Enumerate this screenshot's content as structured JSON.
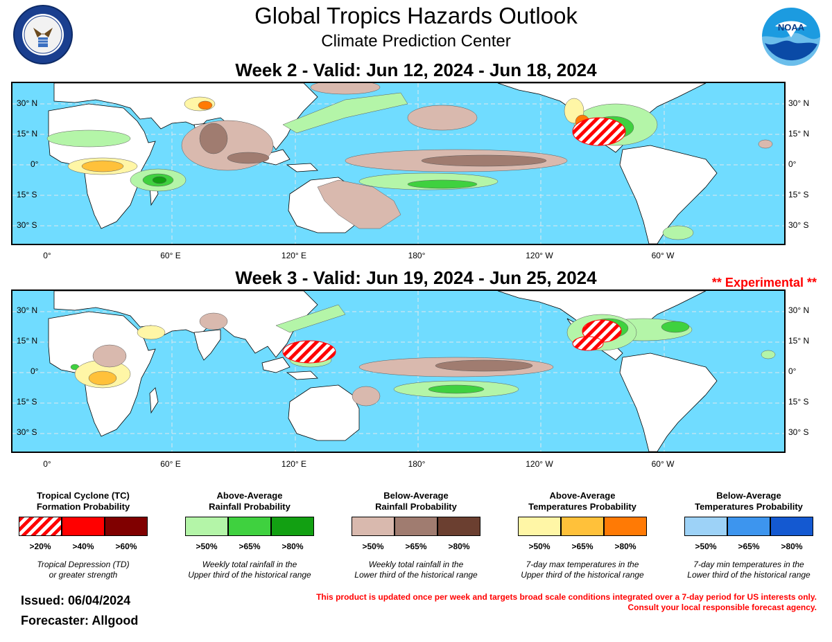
{
  "header": {
    "title": "Global Tropics Hazards Outlook",
    "subtitle": "Climate Prediction Center"
  },
  "week2": {
    "title": "Week 2 - Valid: Jun 12, 2024 - Jun 18, 2024"
  },
  "week3": {
    "title": "Week 3 - Valid: Jun 19, 2024 - Jun 25, 2024",
    "tag": "** Experimental **"
  },
  "axes": {
    "lat_labels": [
      "30° N",
      "15° N",
      "0°",
      "15° S",
      "30° S"
    ],
    "lon_labels": [
      "0°",
      "60° E",
      "120° E",
      "180°",
      "120° W",
      "60° W"
    ]
  },
  "legend": {
    "tc": {
      "title_line1": "Tropical Cyclone (TC)",
      "title_line2": "Formation Probability",
      "labels": [
        ">20%",
        ">40%",
        ">60%"
      ],
      "colors": [
        "#ff0000",
        "#ff0000",
        "#800000"
      ],
      "note_line1": "Tropical Depression (TD)",
      "note_line2": "or greater strength"
    },
    "rain_above": {
      "title_line1": "Above-Average",
      "title_line2": "Rainfall Probability",
      "labels": [
        ">50%",
        ">65%",
        ">80%"
      ],
      "colors": [
        "#b4f5a8",
        "#3fd13f",
        "#12a012"
      ],
      "note_line1": "Weekly total rainfall in the",
      "note_line2": "Upper third of the historical range"
    },
    "rain_below": {
      "title_line1": "Below-Average",
      "title_line2": "Rainfall Probability",
      "labels": [
        ">50%",
        ">65%",
        ">80%"
      ],
      "colors": [
        "#d9b9ae",
        "#a07c70",
        "#6b3f30"
      ],
      "note_line1": "Weekly total rainfall in the",
      "note_line2": "Lower third of the historical range"
    },
    "temp_above": {
      "title_line1": "Above-Average",
      "title_line2": "Temperatures Probability",
      "labels": [
        ">50%",
        ">65%",
        ">80%"
      ],
      "colors": [
        "#fff6a6",
        "#ffc13a",
        "#ff7a05"
      ],
      "note_line1": "7-day max temperatures in the",
      "note_line2": "Upper third of the historical range"
    },
    "temp_below": {
      "title_line1": "Below-Average",
      "title_line2": "Temperatures Probability",
      "labels": [
        ">50%",
        ">65%",
        ">80%"
      ],
      "colors": [
        "#9dd2f7",
        "#3d95ee",
        "#1459d1"
      ],
      "note_line1": "7-day min temperatures in the",
      "note_line2": "Lower third of the historical range"
    }
  },
  "footer": {
    "issued": "Issued: 06/04/2024",
    "forecaster": "Forecaster: Allgood",
    "disclaimer_line1": "This product is updated once per week and targets broad scale conditions integrated over a 7-day period for US interests only.",
    "disclaimer_line2": "Consult your local responsible forecast agency."
  },
  "logos": {
    "noaa_text": "NOAA"
  },
  "colors": {
    "ocean": "#70dcff",
    "land": "#ffffff"
  }
}
